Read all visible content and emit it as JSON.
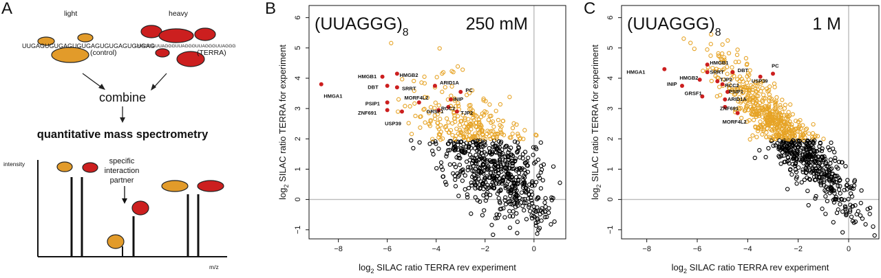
{
  "panel_letters": [
    "A",
    "B",
    "C"
  ],
  "schematic": {
    "light_label": "light",
    "heavy_label": "heavy",
    "control_seq": "UUGAGUGUGAGUGUGAGUGUGAGUGUGAG",
    "control_tag": "(control)",
    "terra_seq": "UUAGGGUUAGGGUUAGGGUUAGGGUUAGGG",
    "terra_tag": "(TERRA)",
    "combine": "combine",
    "qms": "quantitative mass spectrometry",
    "intensity": "intensity",
    "mz": "m/z",
    "specific": [
      "specific",
      "interaction",
      "partner"
    ],
    "colors": {
      "light": "#e29b2a",
      "heavy": "#cc1f1f",
      "outline": "#222222"
    }
  },
  "colors": {
    "background": "#000000",
    "hit": "#e6a325",
    "labeled": "#cc1f1f",
    "zero_line": "#bbbbbb"
  },
  "chart_data": [
    {
      "type": "scatter",
      "panel": "B",
      "title_seq": "(UUAGGG)",
      "title_sub": "8",
      "condition": "250 mM",
      "xlabel_parts": [
        "log",
        "2",
        " SILAC ratio TERRA rev experiment"
      ],
      "ylabel_parts": [
        "log",
        "2",
        " SILAC ratio TERRA for experiment"
      ],
      "xlim": [
        -9.2,
        1.3
      ],
      "ylim": [
        -1.3,
        6.4
      ],
      "xticks": [
        -8,
        -6,
        -4,
        -2,
        0
      ],
      "yticks": [
        -1,
        0,
        1,
        2,
        3,
        4,
        5,
        6
      ],
      "cloud": {
        "count": 820,
        "slope": -0.55,
        "intercept": 0.3,
        "x_mean": -1.8,
        "x_sd": 1.3,
        "y_sd": 0.85,
        "threshold": 1.95
      },
      "labeled_points": [
        {
          "name": "HMGA1",
          "x": -8.7,
          "y": 3.8,
          "lx": -8.6,
          "ly": 3.35
        },
        {
          "name": "HMGB1",
          "x": -6.2,
          "y": 4.05,
          "lx": -7.2,
          "ly": 4.0
        },
        {
          "name": "HMGB2",
          "x": -5.6,
          "y": 4.15,
          "lx": -5.5,
          "ly": 4.05
        },
        {
          "name": "DBT",
          "x": -6.0,
          "y": 3.75,
          "lx": -6.8,
          "ly": 3.65
        },
        {
          "name": "SRRT",
          "x": -5.6,
          "y": 3.7,
          "lx": -5.4,
          "ly": 3.6
        },
        {
          "name": "ARID1A",
          "x": -4.05,
          "y": 3.75,
          "lx": -3.85,
          "ly": 3.8
        },
        {
          "name": "PC",
          "x": -3.0,
          "y": 3.55,
          "lx": -2.8,
          "ly": 3.55
        },
        {
          "name": "INIP",
          "x": -3.4,
          "y": 3.3,
          "lx": -3.3,
          "ly": 3.25
        },
        {
          "name": "MORF4L2",
          "x": -4.7,
          "y": 3.2,
          "lx": -5.3,
          "ly": 3.3
        },
        {
          "name": "PSIP1",
          "x": -6.0,
          "y": 3.2,
          "lx": -6.9,
          "ly": 3.1
        },
        {
          "name": "ZNF691",
          "x": -6.0,
          "y": 2.95,
          "lx": -7.2,
          "ly": 2.8
        },
        {
          "name": "RCC2",
          "x": -3.5,
          "y": 3.05,
          "lx": -3.8,
          "ly": 2.95
        },
        {
          "name": "GRSF1",
          "x": -3.9,
          "y": 2.95,
          "lx": -4.4,
          "ly": 2.85
        },
        {
          "name": "TJP2",
          "x": -3.15,
          "y": 2.9,
          "lx": -3.0,
          "ly": 2.8
        },
        {
          "name": "USP39",
          "x": -5.4,
          "y": 2.9,
          "lx": -6.1,
          "ly": 2.45
        }
      ]
    },
    {
      "type": "scatter",
      "panel": "C",
      "title_seq": "(UUAGGG)",
      "title_sub": "8",
      "condition": "1 M",
      "xlabel_parts": [
        "log",
        "2",
        " SILAC ratio TERRA rev experiment"
      ],
      "ylabel_parts": [
        "log",
        "2",
        " SILAC ratio TERRA for experiment"
      ],
      "xlim": [
        -9.0,
        1.2
      ],
      "ylim": [
        -1.3,
        6.4
      ],
      "xticks": [
        -8,
        -6,
        -4,
        -2,
        0
      ],
      "yticks": [
        -1,
        0,
        1,
        2,
        3,
        4,
        5,
        6
      ],
      "cloud": {
        "count": 900,
        "slope": -0.85,
        "intercept": 0.0,
        "x_mean": -2.4,
        "x_sd": 1.35,
        "y_sd": 0.5,
        "threshold": 1.95
      },
      "labeled_points": [
        {
          "name": "HMGA1",
          "x": -7.3,
          "y": 4.3,
          "lx": -8.8,
          "ly": 4.15
        },
        {
          "name": "HMGB1",
          "x": -5.6,
          "y": 4.45,
          "lx": -5.5,
          "ly": 4.45
        },
        {
          "name": "SRRT",
          "x": -5.6,
          "y": 4.2,
          "lx": -5.5,
          "ly": 4.15
        },
        {
          "name": "DBT",
          "x": -4.6,
          "y": 4.2,
          "lx": -4.4,
          "ly": 4.2
        },
        {
          "name": "PC",
          "x": -3.0,
          "y": 4.15,
          "lx": -3.05,
          "ly": 4.35
        },
        {
          "name": "HMGB2",
          "x": -5.9,
          "y": 3.95,
          "lx": -6.7,
          "ly": 3.95
        },
        {
          "name": "TJP2",
          "x": -5.2,
          "y": 3.9,
          "lx": -5.1,
          "ly": 3.9
        },
        {
          "name": "USP39",
          "x": -3.5,
          "y": 4.05,
          "lx": -3.85,
          "ly": 3.85
        },
        {
          "name": "INIP",
          "x": -6.6,
          "y": 3.75,
          "lx": -7.2,
          "ly": 3.75
        },
        {
          "name": "RCC2",
          "x": -5.0,
          "y": 3.8,
          "lx": -4.9,
          "ly": 3.7
        },
        {
          "name": "PSIP1",
          "x": -4.8,
          "y": 3.55,
          "lx": -4.75,
          "ly": 3.5
        },
        {
          "name": "GRSF1",
          "x": -5.8,
          "y": 3.4,
          "lx": -6.5,
          "ly": 3.45
        },
        {
          "name": "ARID1A",
          "x": -4.9,
          "y": 3.3,
          "lx": -4.8,
          "ly": 3.25
        },
        {
          "name": "ZNF691",
          "x": -4.9,
          "y": 3.05,
          "lx": -5.1,
          "ly": 2.95
        },
        {
          "name": "MORF4L2",
          "x": -4.4,
          "y": 2.85,
          "lx": -5.0,
          "ly": 2.5
        }
      ]
    }
  ]
}
